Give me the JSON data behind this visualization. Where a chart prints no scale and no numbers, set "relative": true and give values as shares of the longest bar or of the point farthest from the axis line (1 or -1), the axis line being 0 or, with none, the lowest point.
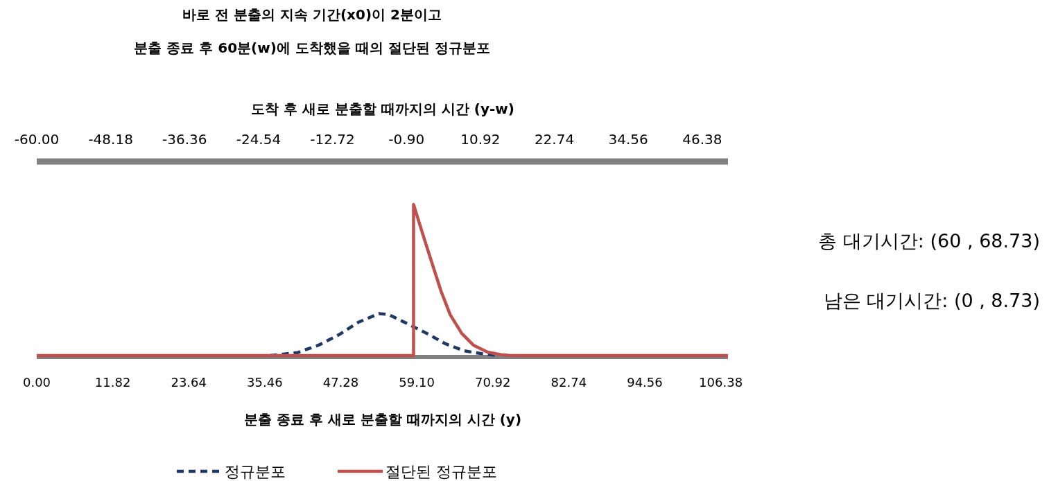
{
  "chart_data": {
    "type": "line",
    "title": "바로 전 분출의 지속 기간(x0)이 2분이고\n분출 종료 후 60분(w)에 도착했을 때의 절단된 정규분포",
    "xlabel": "분출 종료 후 새로 분출할 때까지의 시간 (y)",
    "x2label": "도착 후 새로 분출할 때까지의 시간 (y-w)",
    "relative": true,
    "xlim": [
      0,
      107.5
    ],
    "xticks": [
      {
        "value": 0,
        "label": "0.00"
      },
      11.82,
      23.64,
      35.46,
      47.28,
      {
        "value": 59.1,
        "label": "59.10"
      },
      70.92,
      82.74,
      94.56,
      106.38
    ],
    "x2lim": [
      -60,
      50.5
    ],
    "x2ticks": [
      {
        "value": -60,
        "label": "-60.00"
      },
      -48.18,
      -36.36,
      -24.54,
      -12.72,
      {
        "value": -0.9,
        "label": "-0.90"
      },
      10.92,
      22.74,
      34.56,
      46.38
    ],
    "grid": false,
    "legend": "bottom",
    "marker": "none",
    "series": [
      {
        "name": "정규분포",
        "color": "#1f3864",
        "line_style": "dashed",
        "x": [
          36.3,
          40.6,
          43.9,
          47.1,
          50.0,
          53.2,
          54.7,
          57.2,
          58.6,
          60.7,
          63.6,
          66.5,
          69.3,
          71.8
        ],
        "values": [
          0,
          0.02,
          0.07,
          0.14,
          0.22,
          0.277,
          0.272,
          0.22,
          0.19,
          0.146,
          0.077,
          0.031,
          0.012,
          0
        ]
      },
      {
        "name": "절단된 정규분포",
        "color": "#c0504d",
        "line_style": "solid",
        "x": [
          0,
          58.6,
          58.6,
          60.0,
          61.5,
          62.9,
          64.3,
          66.1,
          67.9,
          70.1,
          72.2,
          73.7,
          107.5
        ],
        "values": [
          0,
          0,
          1,
          0.808,
          0.608,
          0.423,
          0.27,
          0.146,
          0.069,
          0.023,
          0.006,
          0,
          0
        ]
      }
    ],
    "annotations": [
      "총 대기시간: (60 , 68.73)",
      "남은 대기시간: (0 , 8.73)"
    ]
  }
}
